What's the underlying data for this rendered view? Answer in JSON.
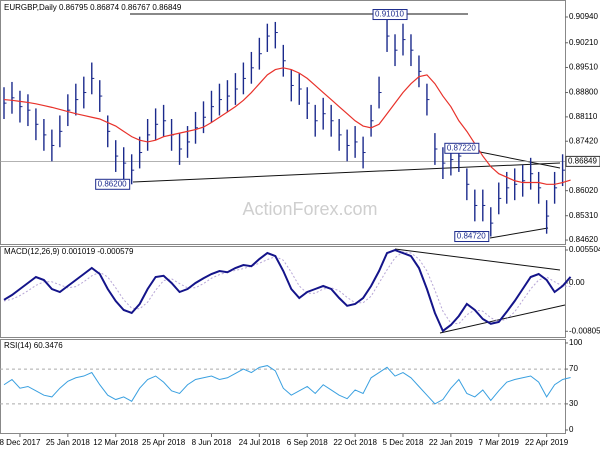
{
  "chart_data": [
    {
      "type": "ohlc",
      "title": "EURGBP,Daily  0.86795 0.86874 0.86767 0.86849",
      "watermark": "ActionForex.com",
      "bar_color": "#1b2a8c",
      "ma_color": "#e8322b",
      "ylim": [
        0.8448,
        0.9128
      ],
      "yticks": [
        {
          "value": 0.8462,
          "label": "0.84620"
        },
        {
          "value": 0.8531,
          "label": "0.85310"
        },
        {
          "value": 0.8602,
          "label": "0.86020"
        },
        {
          "value": 0.8742,
          "label": "0.87420"
        },
        {
          "value": 0.8811,
          "label": "0.88110"
        },
        {
          "value": 0.888,
          "label": "0.88800"
        },
        {
          "value": 0.8951,
          "label": "0.89510"
        },
        {
          "value": 0.9021,
          "label": "0.90210"
        },
        {
          "value": 0.9094,
          "label": "0.90940"
        }
      ],
      "last_price": 0.86849,
      "annotations": [
        {
          "value": 0.9101,
          "label": "0.91010"
        },
        {
          "value": 0.8722,
          "label": "0.87220"
        },
        {
          "value": 0.862,
          "label": "0.86200"
        },
        {
          "value": 0.8472,
          "label": "0.84720"
        }
      ],
      "high": [
        0.8895,
        0.891,
        0.8885,
        0.8875,
        0.8835,
        0.8805,
        0.8775,
        0.8815,
        0.8875,
        0.8905,
        0.8925,
        0.8965,
        0.8915,
        0.8815,
        0.8745,
        0.8725,
        0.8705,
        0.8755,
        0.8805,
        0.8835,
        0.8845,
        0.8805,
        0.8765,
        0.8785,
        0.8825,
        0.8855,
        0.8885,
        0.8905,
        0.8915,
        0.8935,
        0.8965,
        0.8995,
        0.9035,
        0.9075,
        0.908,
        0.9015,
        0.8945,
        0.8935,
        0.8895,
        0.8845,
        0.8865,
        0.8845,
        0.8805,
        0.8775,
        0.8785,
        0.8755,
        0.8845,
        0.8925,
        0.9101,
        0.9045,
        0.9075,
        0.9045,
        0.8985,
        0.8905,
        0.8765,
        0.8725,
        0.8735,
        0.8722,
        0.8665,
        0.8605,
        0.8605,
        0.8555,
        0.8625,
        0.8655,
        0.8665,
        0.8675,
        0.8695,
        0.8655,
        0.8575,
        0.8655,
        0.8705,
        0.86874
      ],
      "low": [
        0.8805,
        0.882,
        0.8795,
        0.8785,
        0.8745,
        0.8715,
        0.8685,
        0.8725,
        0.8785,
        0.8815,
        0.8835,
        0.8875,
        0.8825,
        0.8725,
        0.8655,
        0.8635,
        0.862,
        0.8665,
        0.8715,
        0.8745,
        0.8755,
        0.8715,
        0.8675,
        0.8695,
        0.8735,
        0.8765,
        0.8795,
        0.8815,
        0.8825,
        0.8845,
        0.8875,
        0.8905,
        0.8945,
        0.8995,
        0.9005,
        0.8925,
        0.8855,
        0.8845,
        0.8805,
        0.8755,
        0.8775,
        0.8755,
        0.8715,
        0.8685,
        0.8695,
        0.8665,
        0.8755,
        0.8835,
        0.8995,
        0.8955,
        0.8985,
        0.8955,
        0.8895,
        0.8815,
        0.8675,
        0.8635,
        0.8645,
        0.8655,
        0.8575,
        0.8515,
        0.8515,
        0.8472,
        0.8535,
        0.8565,
        0.8575,
        0.8585,
        0.8605,
        0.8565,
        0.848,
        0.8565,
        0.8615,
        0.86767
      ],
      "close": [
        0.885,
        0.8865,
        0.884,
        0.883,
        0.879,
        0.876,
        0.873,
        0.877,
        0.883,
        0.886,
        0.888,
        0.892,
        0.887,
        0.877,
        0.87,
        0.868,
        0.866,
        0.871,
        0.876,
        0.879,
        0.88,
        0.876,
        0.872,
        0.874,
        0.878,
        0.881,
        0.884,
        0.886,
        0.887,
        0.889,
        0.892,
        0.895,
        0.899,
        0.904,
        0.905,
        0.897,
        0.89,
        0.889,
        0.885,
        0.88,
        0.882,
        0.88,
        0.876,
        0.873,
        0.874,
        0.871,
        0.88,
        0.888,
        0.904,
        0.9,
        0.903,
        0.9,
        0.894,
        0.886,
        0.872,
        0.868,
        0.869,
        0.87,
        0.862,
        0.856,
        0.856,
        0.851,
        0.858,
        0.861,
        0.862,
        0.863,
        0.865,
        0.861,
        0.853,
        0.861,
        0.866,
        0.86849
      ],
      "ma": [
        0.886,
        0.8858,
        0.8855,
        0.8852,
        0.8848,
        0.8843,
        0.8838,
        0.8832,
        0.8826,
        0.882,
        0.8815,
        0.881,
        0.8805,
        0.8795,
        0.8785,
        0.877,
        0.8755,
        0.8745,
        0.874,
        0.8745,
        0.8755,
        0.876,
        0.8765,
        0.877,
        0.8775,
        0.8782,
        0.8795,
        0.881,
        0.8825,
        0.884,
        0.8858,
        0.888,
        0.8905,
        0.893,
        0.8945,
        0.895,
        0.8945,
        0.8935,
        0.892,
        0.89,
        0.888,
        0.886,
        0.884,
        0.882,
        0.88,
        0.8785,
        0.878,
        0.879,
        0.882,
        0.885,
        0.888,
        0.8905,
        0.8925,
        0.893,
        0.8905,
        0.887,
        0.884,
        0.88,
        0.877,
        0.8735,
        0.87,
        0.867,
        0.865,
        0.864,
        0.863,
        0.8625,
        0.8625,
        0.8625,
        0.862,
        0.862,
        0.8625,
        0.8632
      ]
    },
    {
      "type": "macd",
      "title": "MACD(12,26,9) 0.001019 -0.000579",
      "macd_color": "#14148a",
      "signal_color": "#b7a6d6",
      "ylim": [
        -0.00917,
        0.00617
      ],
      "yticks": [
        -0.00805,
        {
          "value": 0,
          "label": "0.00"
        },
        0.005504
      ],
      "macd": [
        -0.0028,
        -0.002,
        -0.001,
        0,
        0.001,
        0.0005,
        -0.001,
        -0.0015,
        -0.0005,
        0.0005,
        0.0015,
        0.0025,
        0.0015,
        -0.001,
        -0.003,
        -0.0045,
        -0.005,
        -0.0035,
        -0.001,
        0.001,
        0.0012,
        0,
        -0.0015,
        -0.001,
        0,
        0.0008,
        0.0015,
        0.002,
        0.0018,
        0.0025,
        0.003,
        0.0028,
        0.004,
        0.005,
        0.0045,
        0.002,
        -0.001,
        -0.0025,
        -0.0015,
        -0.001,
        -0.0005,
        -0.001,
        -0.0025,
        -0.0038,
        -0.0035,
        -0.0025,
        -0.0005,
        0.002,
        0.005,
        0.0055,
        0.005,
        0.0045,
        0.0025,
        -0.001,
        -0.005,
        -0.008,
        -0.007,
        -0.0055,
        -0.0035,
        -0.0045,
        -0.006,
        -0.0068,
        -0.0065,
        -0.0048,
        -0.003,
        -0.001,
        0.001,
        0.0015,
        0.0005,
        -0.0015,
        -0.0005,
        0.001019
      ],
      "signal": [
        -0.003,
        -0.0027,
        -0.0021,
        -0.0013,
        -0.0004,
        0.0002,
        0.0002,
        -0.0003,
        -0.0008,
        -0.0006,
        0.0002,
        0.0012,
        0.0018,
        0.001,
        -0.0008,
        -0.0028,
        -0.0042,
        -0.0043,
        -0.0032,
        -0.0012,
        0.0004,
        0.0007,
        -0.0001,
        -0.0008,
        -0.0008,
        -0.0001,
        0.0008,
        0.0014,
        0.0018,
        0.0021,
        0.0024,
        0.0028,
        0.0033,
        0.0039,
        0.0044,
        0.0038,
        0.0018,
        -0.0005,
        -0.0017,
        -0.0017,
        -0.001,
        -0.0008,
        -0.0013,
        -0.0024,
        -0.0033,
        -0.0033,
        -0.0022,
        0,
        0.0022,
        0.0042,
        0.0052,
        0.005,
        0.004,
        0.002,
        -0.0012,
        -0.0047,
        -0.0067,
        -0.0068,
        -0.0053,
        -0.0045,
        -0.0047,
        -0.0058,
        -0.0064,
        -0.006,
        -0.0048,
        -0.0029,
        -0.001,
        0.0005,
        0.001,
        0.0002,
        -0.0005,
        -0.000579
      ]
    },
    {
      "type": "line",
      "title": "RSI(14) 60.3476",
      "color": "#3aa0e0",
      "ylim": [
        -2.3,
        103.4
      ],
      "yticks": [
        0,
        30,
        70,
        100
      ],
      "levels": [
        30,
        70
      ],
      "values": [
        52,
        58,
        48,
        50,
        45,
        40,
        38,
        48,
        56,
        60,
        62,
        66,
        52,
        40,
        35,
        38,
        33,
        48,
        58,
        62,
        55,
        45,
        42,
        52,
        58,
        60,
        62,
        58,
        60,
        65,
        70,
        66,
        72,
        74,
        68,
        48,
        40,
        45,
        50,
        42,
        52,
        46,
        40,
        36,
        46,
        42,
        60,
        66,
        72,
        62,
        66,
        60,
        50,
        40,
        30,
        35,
        48,
        58,
        42,
        38,
        46,
        34,
        45,
        55,
        58,
        60,
        62,
        55,
        38,
        52,
        58,
        60.3476
      ],
      "categories": [
        null,
        null,
        "8 Dec 2017",
        null,
        null,
        null,
        null,
        null,
        "25 Jan 2018",
        null,
        null,
        null,
        null,
        null,
        "12 Mar 2018",
        null,
        null,
        null,
        null,
        null,
        "25 Apr 2018",
        null,
        null,
        null,
        null,
        null,
        "8 Jun 2018",
        null,
        null,
        null,
        null,
        null,
        "24 Jul 2018",
        null,
        null,
        null,
        null,
        null,
        "6 Sep 2018",
        null,
        null,
        null,
        null,
        null,
        "22 Oct 2018",
        null,
        null,
        null,
        null,
        null,
        "5 Dec 2018",
        null,
        null,
        null,
        null,
        null,
        "22 Jan 2019",
        null,
        null,
        null,
        null,
        null,
        "7 Mar 2019",
        null,
        null,
        null,
        null,
        null,
        "22 Apr 2019",
        null,
        null,
        null
      ]
    }
  ]
}
